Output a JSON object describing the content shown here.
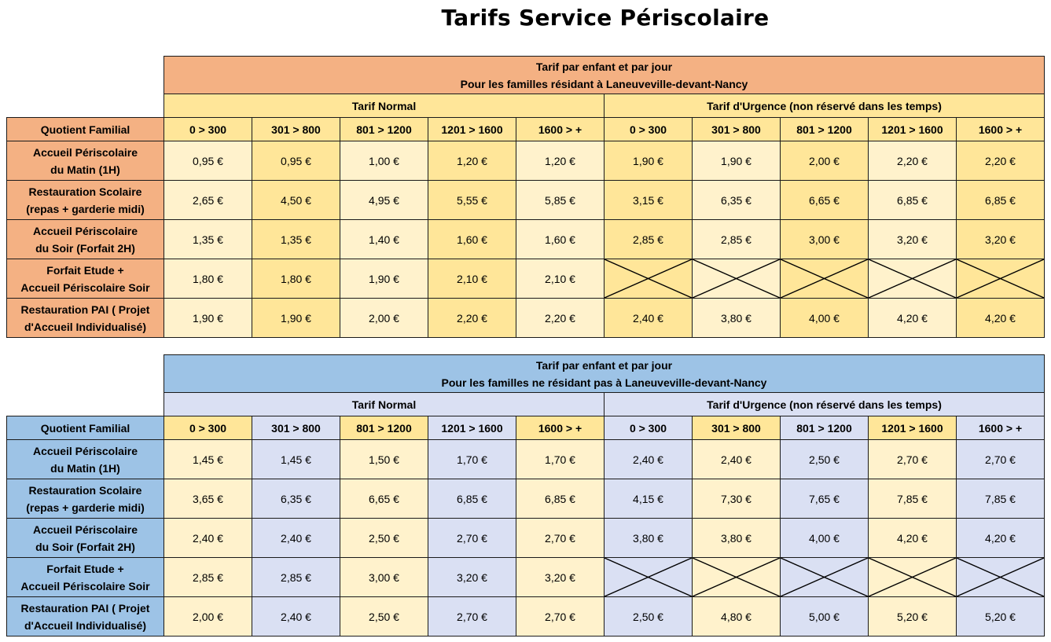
{
  "title": "Tarifs Service Périscolaire",
  "headers": {
    "quotient_label": "Quotient Familial",
    "normal": "Tarif Normal",
    "urgence": "Tarif d'Urgence (non réservé dans les temps)",
    "brackets": [
      "0 > 300",
      "301 > 800",
      "801 > 1200",
      "1201 > 1600",
      "1600 > +"
    ]
  },
  "tables": [
    {
      "header_line1": "Tarif par enfant et par jour",
      "header_line2": "Pour les familles résidant à Laneuveville-devant-Nancy",
      "rows": [
        {
          "label1": "Accueil Périscolaire",
          "label2": "du Matin (1H)",
          "normal": [
            "0,95 €",
            "0,95 €",
            "1,00 €",
            "1,20 €",
            "1,20 €"
          ],
          "urgence": [
            "1,90 €",
            "1,90 €",
            "2,00 €",
            "2,20 €",
            "2,20 €"
          ]
        },
        {
          "label1": "Restauration Scolaire",
          "label2": "(repas + garderie midi)",
          "normal": [
            "2,65 €",
            "4,50 €",
            "4,95 €",
            "5,55 €",
            "5,85 €"
          ],
          "urgence": [
            "3,15 €",
            "6,35 €",
            "6,65 €",
            "6,85 €",
            "6,85 €"
          ]
        },
        {
          "label1": "Accueil Périscolaire",
          "label2": "du Soir (Forfait 2H)",
          "normal": [
            "1,35 €",
            "1,35 €",
            "1,40 €",
            "1,60 €",
            "1,60 €"
          ],
          "urgence": [
            "2,85 €",
            "2,85 €",
            "3,00 €",
            "3,20 €",
            "3,20 €"
          ]
        },
        {
          "label1": "Forfait Etude +",
          "label2": "Accueil Périscolaire Soir",
          "normal": [
            "1,80 €",
            "1,80 €",
            "1,90 €",
            "2,10 €",
            "2,10 €"
          ],
          "urgence": [
            "",
            "",
            "",
            "",
            ""
          ]
        },
        {
          "label1": "Restauration PAI ( Projet",
          "label2": "d'Accueil Individualisé)",
          "normal": [
            "1,90 €",
            "1,90 €",
            "2,00 €",
            "2,20 €",
            "2,20 €"
          ],
          "urgence": [
            "2,40 €",
            "3,80 €",
            "4,00 €",
            "4,20 €",
            "4,20 €"
          ]
        }
      ]
    },
    {
      "header_line1": "Tarif par enfant et par jour",
      "header_line2": "Pour les familles ne résidant pas à Laneuveville-devant-Nancy",
      "rows": [
        {
          "label1": "Accueil Périscolaire",
          "label2": "du Matin (1H)",
          "normal": [
            "1,45 €",
            "1,45 €",
            "1,50 €",
            "1,70 €",
            "1,70 €"
          ],
          "urgence": [
            "2,40 €",
            "2,40 €",
            "2,50 €",
            "2,70 €",
            "2,70 €"
          ]
        },
        {
          "label1": "Restauration Scolaire",
          "label2": "(repas + garderie midi)",
          "normal": [
            "3,65 €",
            "6,35 €",
            "6,65 €",
            "6,85 €",
            "6,85 €"
          ],
          "urgence": [
            "4,15 €",
            "7,30 €",
            "7,65 €",
            "7,85 €",
            "7,85 €"
          ]
        },
        {
          "label1": "Accueil Périscolaire",
          "label2": "du Soir (Forfait 2H)",
          "normal": [
            "2,40 €",
            "2,40 €",
            "2,50 €",
            "2,70 €",
            "2,70 €"
          ],
          "urgence": [
            "3,80 €",
            "3,80 €",
            "4,00 €",
            "4,20 €",
            "4,20 €"
          ]
        },
        {
          "label1": "Forfait Etude +",
          "label2": "Accueil Périscolaire Soir",
          "normal": [
            "2,85 €",
            "2,85 €",
            "3,00 €",
            "3,20 €",
            "3,20 €"
          ],
          "urgence": [
            "",
            "",
            "",
            "",
            ""
          ]
        },
        {
          "label1": "Restauration PAI ( Projet",
          "label2": "d'Accueil Individualisé)",
          "normal": [
            "2,00 €",
            "2,40 €",
            "2,50 €",
            "2,70 €",
            "2,70 €"
          ],
          "urgence": [
            "2,50 €",
            "4,80 €",
            "5,00 €",
            "5,20 €",
            "5,20 €"
          ]
        }
      ]
    }
  ]
}
